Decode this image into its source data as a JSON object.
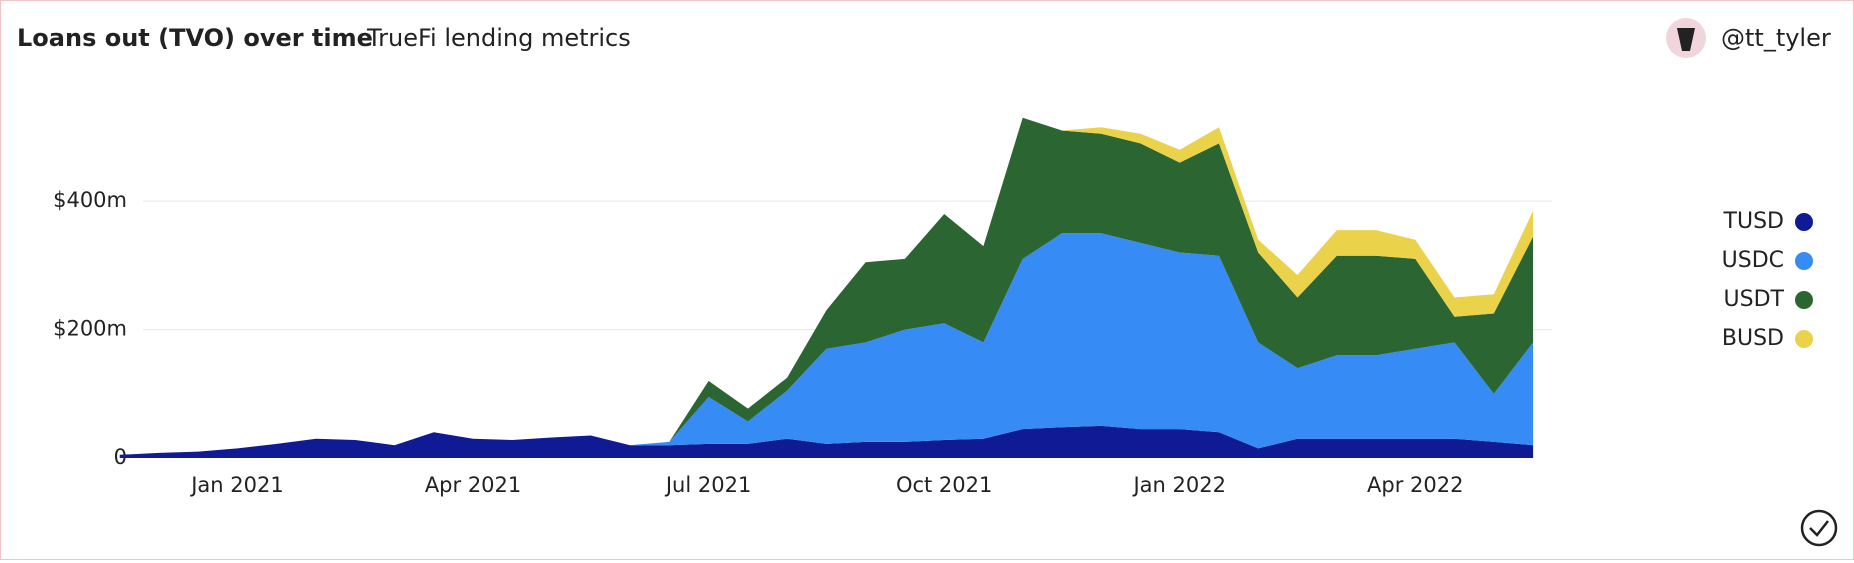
{
  "user": "@tt_tyler",
  "chart_data": {
    "type": "stacked-area",
    "title": "Loans out (TVO) over time",
    "subtitle": "TrueFi lending metrics",
    "categories": [
      null,
      null,
      null,
      "Jan 2021",
      null,
      null,
      null,
      null,
      null,
      "Apr 2021",
      null,
      null,
      null,
      null,
      null,
      "Jul 2021",
      null,
      null,
      null,
      null,
      null,
      "Oct 2021",
      null,
      null,
      null,
      null,
      null,
      "Jan 2022",
      null,
      null,
      null,
      null,
      null,
      "Apr 2022",
      null,
      null,
      null
    ],
    "ylim": [
      0,
      570
    ],
    "yticks": [
      0,
      {
        "value": 200,
        "label": "$200m"
      },
      {
        "value": 400,
        "label": "$400m"
      }
    ],
    "grid": true,
    "legend": "right",
    "series": [
      {
        "name": "TUSD",
        "color": "#0f1a94",
        "values": [
          5,
          8,
          10,
          15,
          22,
          30,
          28,
          20,
          40,
          30,
          28,
          32,
          35,
          20,
          20,
          22,
          22,
          30,
          22,
          25,
          25,
          28,
          30,
          45,
          48,
          50,
          45,
          45,
          40,
          15,
          30,
          30,
          30,
          30,
          30,
          25,
          20
        ]
      },
      {
        "name": "USDC",
        "color": "#378bf5",
        "values": [
          0,
          0,
          0,
          0,
          0,
          0,
          0,
          0,
          0,
          0,
          0,
          0,
          0,
          0,
          5,
          73,
          35,
          75,
          148,
          155,
          175,
          182,
          150,
          265,
          302,
          300,
          290,
          275,
          275,
          165,
          110,
          130,
          130,
          140,
          150,
          75,
          160
        ]
      },
      {
        "name": "USDT",
        "color": "#2b6531",
        "values": [
          0,
          0,
          0,
          0,
          0,
          0,
          0,
          0,
          0,
          0,
          0,
          0,
          0,
          0,
          0,
          25,
          20,
          20,
          60,
          125,
          110,
          170,
          150,
          220,
          160,
          155,
          155,
          140,
          175,
          140,
          110,
          155,
          155,
          140,
          40,
          125,
          165
        ]
      },
      {
        "name": "BUSD",
        "color": "#ebd24b",
        "values": [
          0,
          0,
          0,
          0,
          0,
          0,
          0,
          0,
          0,
          0,
          0,
          0,
          0,
          0,
          0,
          0,
          0,
          0,
          0,
          0,
          0,
          0,
          0,
          0,
          0,
          10,
          15,
          20,
          25,
          20,
          35,
          40,
          40,
          30,
          30,
          30,
          40
        ]
      }
    ]
  }
}
